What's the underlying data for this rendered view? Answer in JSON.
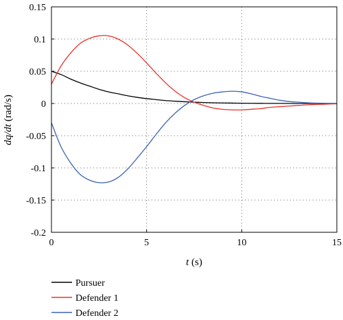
{
  "chart_data": {
    "type": "line",
    "title": "",
    "xlabel_var": "t",
    "xlabel_unit": " (s)",
    "ylabel_var": "dq/dt",
    "ylabel_unit": " (rad/s)",
    "xlim": [
      0,
      15
    ],
    "ylim": [
      -0.2,
      0.15
    ],
    "xticks": [
      0,
      5,
      10,
      15
    ],
    "xtick_labels": [
      "0",
      "5",
      "10",
      "15"
    ],
    "yticks": [
      0.15,
      0.1,
      0.05,
      0,
      -0.05,
      -0.1,
      -0.15,
      -0.2
    ],
    "ytick_labels": [
      "0.15",
      "0.1",
      "0.05",
      "0",
      "-0.05",
      "-0.1",
      "-0.15",
      "-0.2"
    ],
    "grid": true,
    "legend_position": "bottom-left, below plot",
    "series": [
      {
        "name": "Pursuer",
        "color": "#000000",
        "x": [
          0,
          0.5,
          1,
          1.5,
          2,
          2.5,
          3,
          3.5,
          4,
          4.5,
          5,
          5.5,
          6,
          6.5,
          7,
          7.5,
          8,
          8.5,
          9,
          9.5,
          10,
          10.5,
          11,
          11.5,
          12,
          12.5,
          13,
          13.5,
          14,
          14.5,
          15
        ],
        "y": [
          0.05,
          0.045,
          0.038,
          0.032,
          0.027,
          0.022,
          0.018,
          0.015,
          0.012,
          0.0095,
          0.0075,
          0.006,
          0.0045,
          0.0035,
          0.0027,
          0.002,
          0.0015,
          0.0011,
          0.0008,
          0.0006,
          0.0004,
          0.0003,
          0.0002,
          0.0001,
          0.0001,
          0.0,
          0.0,
          0.0,
          0.0,
          0.0,
          0.0
        ]
      },
      {
        "name": "Defender 1",
        "color": "#e8332b",
        "x": [
          0,
          0.5,
          1,
          1.5,
          2,
          2.5,
          3,
          3.5,
          4,
          4.5,
          5,
          5.5,
          6,
          6.5,
          7,
          7.5,
          8,
          8.5,
          9,
          9.5,
          10,
          10.5,
          11,
          11.5,
          12,
          12.5,
          13,
          13.5,
          14,
          14.5,
          15
        ],
        "y": [
          0.03,
          0.058,
          0.078,
          0.093,
          0.101,
          0.105,
          0.105,
          0.1,
          0.091,
          0.078,
          0.063,
          0.047,
          0.032,
          0.019,
          0.009,
          0.002,
          -0.003,
          -0.007,
          -0.009,
          -0.01,
          -0.01,
          -0.009,
          -0.008,
          -0.006,
          -0.005,
          -0.004,
          -0.003,
          -0.002,
          -0.0015,
          -0.001,
          -0.0005
        ]
      },
      {
        "name": "Defender 2",
        "color": "#3b63b5",
        "x": [
          0,
          0.5,
          1,
          1.5,
          2,
          2.5,
          3,
          3.5,
          4,
          4.5,
          5,
          5.5,
          6,
          6.5,
          7,
          7.5,
          8,
          8.5,
          9,
          9.5,
          10,
          10.5,
          11,
          11.5,
          12,
          12.5,
          13,
          13.5,
          14,
          14.5,
          15
        ],
        "y": [
          -0.03,
          -0.067,
          -0.092,
          -0.11,
          -0.119,
          -0.123,
          -0.122,
          -0.115,
          -0.102,
          -0.085,
          -0.067,
          -0.048,
          -0.03,
          -0.015,
          -0.003,
          0.006,
          0.012,
          0.016,
          0.018,
          0.019,
          0.018,
          0.015,
          0.011,
          0.008,
          0.005,
          0.003,
          0.002,
          0.001,
          0.0005,
          0.0002,
          0.0
        ]
      }
    ]
  }
}
